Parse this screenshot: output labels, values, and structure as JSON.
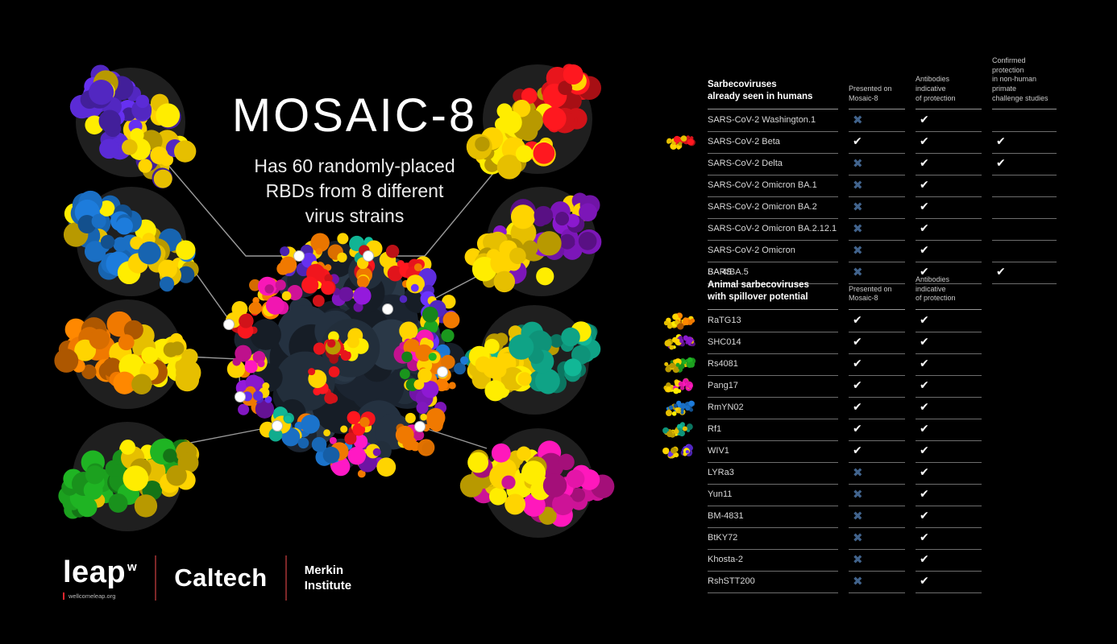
{
  "title": "MOSAIC-8",
  "subtitle": "Has 60 randomly-placed\nRBDs from 8 different\nvirus strains",
  "footer": {
    "leap": "leap",
    "leap_sup": "w",
    "leap_url": "wellcomeleap.org",
    "caltech": "Caltech",
    "merkin": "Merkin\nInstitute"
  },
  "marks": {
    "check_glyph": "✔",
    "x_glyph": "✖",
    "check_color": "#ffffff",
    "x_color": "#41638c"
  },
  "palette": {
    "yellow": "#ffd400",
    "violet": "#5b2bd6",
    "blue": "#1a6fc4",
    "orange": "#f07900",
    "green": "#1ca11f",
    "red": "#e8151c",
    "purple": "#7c16b8",
    "teal": "#0fa386",
    "magenta": "#e415a8",
    "core_dark": "#243140",
    "connector_line": "#9a9a9a",
    "divider_red": "#7d2728",
    "leap_w_red": "#e8262e",
    "shadow_circle": "#1f1f1f"
  },
  "tables": [
    {
      "group_title": "Sarbecoviruses\nalready seen in humans",
      "columns": [
        "Presented on\nMosaic-8",
        "Antibodies indicative\nof protection",
        "Confirmed protection\nin non-human primate\nchallenge studies"
      ],
      "rows": [
        {
          "label": "SARS-CoV-2 Washington.1",
          "icon": null,
          "marks": [
            "x",
            "check",
            ""
          ]
        },
        {
          "label": "SARS-CoV-2 Beta",
          "icon": "red",
          "marks": [
            "check",
            "check",
            "check"
          ]
        },
        {
          "label": "SARS-CoV-2 Delta",
          "icon": null,
          "marks": [
            "x",
            "check",
            "check"
          ]
        },
        {
          "label": "SARS-CoV-2 Omicron BA.1",
          "icon": null,
          "marks": [
            "x",
            "check",
            ""
          ]
        },
        {
          "label": "SARS-CoV-2 Omicron BA.2",
          "icon": null,
          "marks": [
            "x",
            "check",
            ""
          ]
        },
        {
          "label": "SARS-CoV-2 Omicron BA.2.12.1",
          "icon": null,
          "marks": [
            "x",
            "check",
            ""
          ]
        },
        {
          "label": "SARS-CoV-2 Omicron BA.4/BA.5",
          "icon": null,
          "marks": [
            "x",
            "check",
            ""
          ]
        },
        {
          "label": "SARS",
          "icon": null,
          "marks": [
            "x",
            "check",
            "check"
          ]
        }
      ]
    },
    {
      "group_title": "Animal sarbecoviruses\nwith spillover potential",
      "columns": [
        "Presented on\nMosaic-8",
        "Antibodies indicative\nof protection"
      ],
      "rows": [
        {
          "label": "RaTG13",
          "icon": "orange",
          "marks": [
            "check",
            "check"
          ]
        },
        {
          "label": "SHC014",
          "icon": "purple",
          "marks": [
            "check",
            "check"
          ]
        },
        {
          "label": "Rs4081",
          "icon": "green",
          "marks": [
            "check",
            "check"
          ]
        },
        {
          "label": "Pang17",
          "icon": "magenta",
          "marks": [
            "check",
            "check"
          ]
        },
        {
          "label": "RmYN02",
          "icon": "blue",
          "marks": [
            "check",
            "check"
          ]
        },
        {
          "label": "Rf1",
          "icon": "teal",
          "marks": [
            "check",
            "check"
          ]
        },
        {
          "label": "WIV1",
          "icon": "violet",
          "marks": [
            "check",
            "check"
          ]
        },
        {
          "label": "LYRa3",
          "icon": null,
          "marks": [
            "x",
            "check"
          ]
        },
        {
          "label": "Yun11",
          "icon": null,
          "marks": [
            "x",
            "check"
          ]
        },
        {
          "label": "BM-4831",
          "icon": null,
          "marks": [
            "x",
            "check"
          ]
        },
        {
          "label": "BtKY72",
          "icon": null,
          "marks": [
            "x",
            "check"
          ]
        },
        {
          "label": "Khosta-2",
          "icon": null,
          "marks": [
            "x",
            "check"
          ]
        },
        {
          "label": "RshSTT200",
          "icon": null,
          "marks": [
            "x",
            "check"
          ]
        }
      ]
    }
  ]
}
